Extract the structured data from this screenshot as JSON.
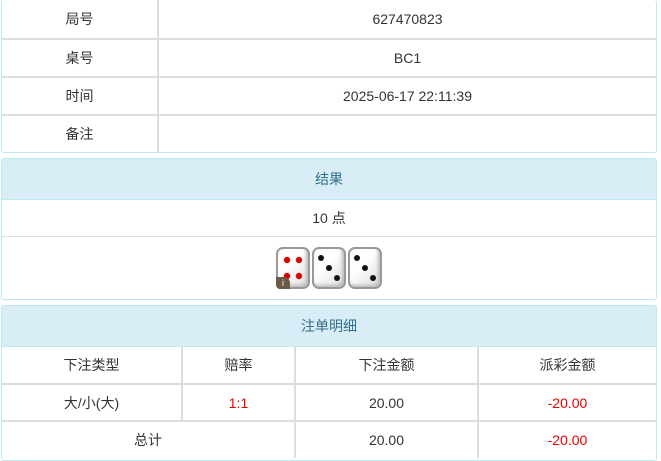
{
  "info": {
    "rows": [
      {
        "label": "局号",
        "value": "627470823"
      },
      {
        "label": "桌号",
        "value": "BC1"
      },
      {
        "label": "时间",
        "value": "2025-06-17 22:11:39"
      },
      {
        "label": "备注",
        "value": ""
      }
    ]
  },
  "result": {
    "title": "结果",
    "points": "10 点",
    "dice": [
      4,
      3,
      3
    ],
    "info_badge": "i"
  },
  "bets": {
    "title": "注单明细",
    "headers": [
      "下注类型",
      "赔率",
      "下注金额",
      "派彩金额"
    ],
    "rows": [
      {
        "type": "大/小(大)",
        "odds": "1:1",
        "amount": "20.00",
        "payout": "-20.00"
      }
    ],
    "total": {
      "label": "总计",
      "amount": "20.00",
      "payout": "-20.00"
    }
  },
  "colors": {
    "header_bg": "#d9edf7",
    "negative": "#e00000"
  }
}
